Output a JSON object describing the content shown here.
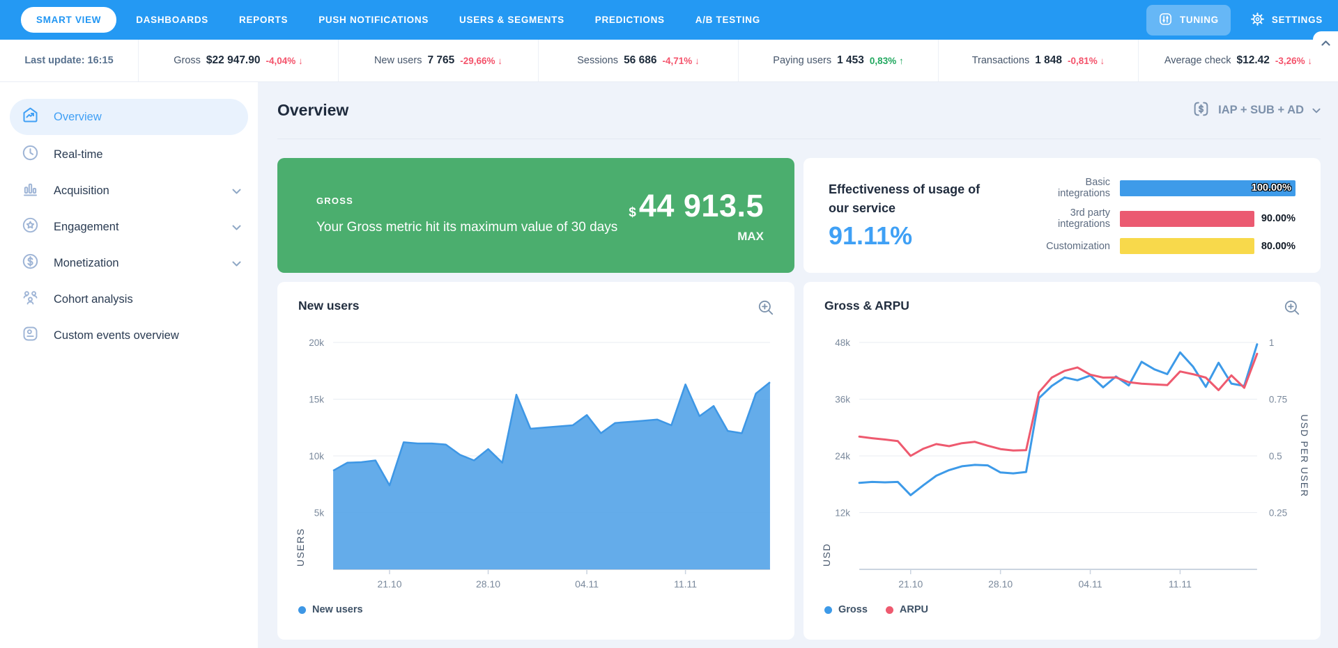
{
  "nav": {
    "tabs": [
      {
        "label": "SMART VIEW",
        "active": true
      },
      {
        "label": "DASHBOARDS",
        "active": false
      },
      {
        "label": "REPORTS",
        "active": false
      },
      {
        "label": "PUSH NOTIFICATIONS",
        "active": false
      },
      {
        "label": "USERS & SEGMENTS",
        "active": false
      },
      {
        "label": "PREDICTIONS",
        "active": false
      },
      {
        "label": "A/B TESTING",
        "active": false
      }
    ],
    "tuning_label": "TUNING",
    "settings_label": "SETTINGS"
  },
  "stats_bar": {
    "last_update": "Last update: 16:15",
    "stats": [
      {
        "label": "Gross",
        "value": "$22 947.90",
        "delta": "-4,04% ↓",
        "delta_color": "#F4536B"
      },
      {
        "label": "New users",
        "value": "7 765",
        "delta": "-29,66% ↓",
        "delta_color": "#F4536B"
      },
      {
        "label": "Sessions",
        "value": "56 686",
        "delta": "-4,71% ↓",
        "delta_color": "#F4536B"
      },
      {
        "label": "Paying users",
        "value": "1 453",
        "delta": "0,83% ↑",
        "delta_color": "#21A85F"
      },
      {
        "label": "Transactions",
        "value": "1 848",
        "delta": "-0,81% ↓",
        "delta_color": "#F4536B"
      },
      {
        "label": "Average check",
        "value": "$12.42",
        "delta": "-3,26% ↓",
        "delta_color": "#F4536B"
      }
    ]
  },
  "sidebar": {
    "items": [
      {
        "label": "Overview",
        "active": true,
        "expandable": false
      },
      {
        "label": "Real-time",
        "active": false,
        "expandable": false
      },
      {
        "label": "Acquisition",
        "active": false,
        "expandable": true
      },
      {
        "label": "Engagement",
        "active": false,
        "expandable": true
      },
      {
        "label": "Monetization",
        "active": false,
        "expandable": true
      },
      {
        "label": "Cohort analysis",
        "active": false,
        "expandable": false
      },
      {
        "label": "Custom events overview",
        "active": false,
        "expandable": false
      }
    ]
  },
  "page": {
    "title": "Overview",
    "revenue_filter": "IAP + SUB + AD"
  },
  "highlight_card": {
    "label": "GROSS",
    "message": "Your Gross metric hit its maximum value of 30 days",
    "currency": "$",
    "value": "44 913.5",
    "suffix": "MAX",
    "background": "#4BAE6E"
  },
  "effectiveness_card": {
    "title_line1": "Effectiveness of usage of",
    "title_line2": "our service",
    "percent": "91.11%",
    "percent_color": "#3FA0F5",
    "bars": [
      {
        "label": "Basic integrations",
        "value_label": "100.00%",
        "percent": 100,
        "color": "#3E9BE9",
        "value_inside": true
      },
      {
        "label": "3rd party integrations",
        "value_label": "90.00%",
        "percent": 90,
        "color": "#EB5A71",
        "value_inside": false
      },
      {
        "label": "Customization",
        "value_label": "80.00%",
        "percent": 80,
        "color": "#F8D94B",
        "value_inside": false
      }
    ]
  },
  "chart_data": [
    {
      "type": "area",
      "title": "New users",
      "ylabel": "USERS",
      "x_tick_labels": [
        "21.10",
        "28.10",
        "04.11",
        "11.11"
      ],
      "x_tick_indices": [
        4,
        11,
        18,
        25
      ],
      "y_ticks": [
        {
          "label": "20k",
          "value": 20000
        },
        {
          "label": "15k",
          "value": 15000
        },
        {
          "label": "10k",
          "value": 10000
        },
        {
          "label": "5k",
          "value": 5000
        }
      ],
      "ymin": 0,
      "ymax": 20000,
      "grid": true,
      "legend_position": "bottom",
      "series": [
        {
          "name": "New users",
          "color": "#3E97E5",
          "fill": "#58A6E8",
          "axis": "left",
          "values": [
            8700,
            9400,
            9450,
            9600,
            7400,
            11200,
            11100,
            11100,
            11000,
            10100,
            9600,
            10600,
            9400,
            15400,
            12400,
            12500,
            12600,
            12700,
            13600,
            12000,
            12900,
            13000,
            13100,
            13200,
            12700,
            16300,
            13500,
            14400,
            12200,
            12000,
            15500,
            16500
          ]
        }
      ]
    },
    {
      "type": "line",
      "title": "Gross & ARPU",
      "ylabel": "USD",
      "ylabel_right": "USD PER USER",
      "x_tick_labels": [
        "21.10",
        "28.10",
        "04.11",
        "11.11"
      ],
      "x_tick_indices": [
        4,
        11,
        18,
        25
      ],
      "y_ticks": [
        {
          "label": "48k",
          "value": 48000
        },
        {
          "label": "36k",
          "value": 36000
        },
        {
          "label": "24k",
          "value": 24000
        },
        {
          "label": "12k",
          "value": 12000
        }
      ],
      "y_ticks_right": [
        "1",
        "0.75",
        "0.5",
        "0.25"
      ],
      "ymin": 0,
      "ymax": 48000,
      "ymin_right": 0,
      "ymax_right": 1,
      "grid": true,
      "legend_position": "bottom",
      "series": [
        {
          "name": "Gross",
          "color": "#3D9AE8",
          "axis": "left",
          "values": [
            18300,
            18500,
            18400,
            18500,
            15700,
            17800,
            19800,
            21000,
            21800,
            22100,
            22000,
            20500,
            20300,
            20600,
            36200,
            38800,
            40600,
            40000,
            41000,
            38500,
            40800,
            38900,
            43900,
            42300,
            41300,
            45900,
            42900,
            38600,
            43700,
            39300,
            38800,
            47600
          ]
        },
        {
          "name": "ARPU",
          "color": "#EE5A6F",
          "axis": "right",
          "values": [
            0.585,
            0.578,
            0.572,
            0.565,
            0.5,
            0.532,
            0.552,
            0.543,
            0.556,
            0.562,
            0.545,
            0.53,
            0.524,
            0.525,
            0.78,
            0.845,
            0.875,
            0.89,
            0.858,
            0.845,
            0.846,
            0.825,
            0.818,
            0.815,
            0.812,
            0.872,
            0.86,
            0.845,
            0.79,
            0.855,
            0.8,
            0.95
          ]
        }
      ]
    }
  ]
}
